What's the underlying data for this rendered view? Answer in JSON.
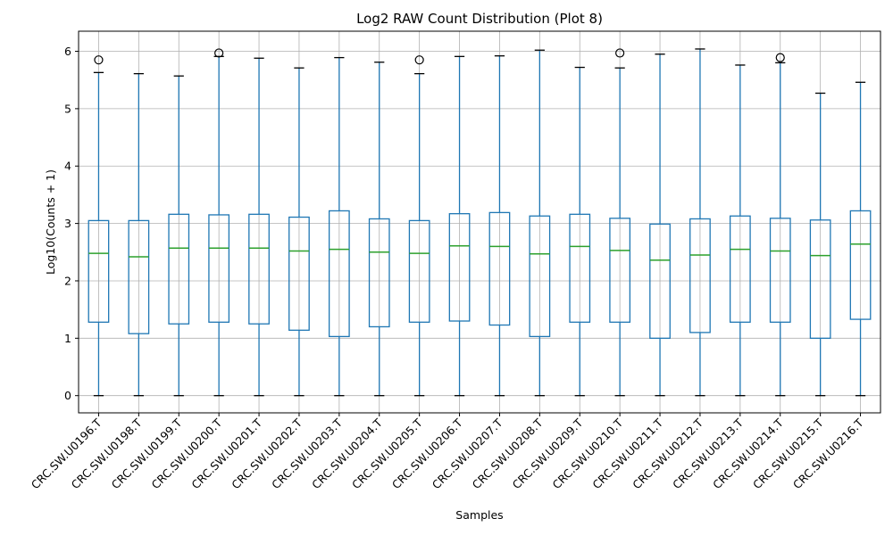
{
  "chart_data": {
    "type": "boxplot",
    "title": "Log2 RAW Count Distribution (Plot 8)",
    "xlabel": "Samples",
    "ylabel": "Log10(Counts + 1)",
    "ylim": [
      -0.3,
      6.35
    ],
    "yticks": [
      0,
      1,
      2,
      3,
      4,
      5,
      6
    ],
    "grid": true,
    "colors": {
      "box": "#1f77b4",
      "median": "#2ca02c",
      "grid": "#b0b0b0",
      "axis": "#000000"
    },
    "categories": [
      "CRC.SW.U0196.T",
      "CRC.SW.U0198.T",
      "CRC.SW.U0199.T",
      "CRC.SW.U0200.T",
      "CRC.SW.U0201.T",
      "CRC.SW.U0202.T",
      "CRC.SW.U0203.T",
      "CRC.SW.U0204.T",
      "CRC.SW.U0205.T",
      "CRC.SW.U0206.T",
      "CRC.SW.U0207.T",
      "CRC.SW.U0208.T",
      "CRC.SW.U0209.T",
      "CRC.SW.U0210.T",
      "CRC.SW.U0211.T",
      "CRC.SW.U0212.T",
      "CRC.SW.U0213.T",
      "CRC.SW.U0214.T",
      "CRC.SW.U0215.T",
      "CRC.SW.U0216.T"
    ],
    "boxes": [
      {
        "whislo": 0,
        "q1": 1.28,
        "med": 2.48,
        "q3": 3.05,
        "whishi": 5.63,
        "fliers": [
          5.85
        ]
      },
      {
        "whislo": 0,
        "q1": 1.08,
        "med": 2.42,
        "q3": 3.05,
        "whishi": 5.61,
        "fliers": []
      },
      {
        "whislo": 0,
        "q1": 1.25,
        "med": 2.57,
        "q3": 3.16,
        "whishi": 5.57,
        "fliers": []
      },
      {
        "whislo": 0,
        "q1": 1.28,
        "med": 2.57,
        "q3": 3.15,
        "whishi": 5.91,
        "fliers": [
          5.97
        ]
      },
      {
        "whislo": 0,
        "q1": 1.25,
        "med": 2.57,
        "q3": 3.16,
        "whishi": 5.88,
        "fliers": []
      },
      {
        "whislo": 0,
        "q1": 1.14,
        "med": 2.52,
        "q3": 3.11,
        "whishi": 5.71,
        "fliers": []
      },
      {
        "whislo": 0,
        "q1": 1.03,
        "med": 2.55,
        "q3": 3.22,
        "whishi": 5.89,
        "fliers": []
      },
      {
        "whislo": 0,
        "q1": 1.2,
        "med": 2.5,
        "q3": 3.08,
        "whishi": 5.81,
        "fliers": []
      },
      {
        "whislo": 0,
        "q1": 1.28,
        "med": 2.48,
        "q3": 3.05,
        "whishi": 5.61,
        "fliers": [
          5.85
        ]
      },
      {
        "whislo": 0,
        "q1": 1.3,
        "med": 2.61,
        "q3": 3.17,
        "whishi": 5.91,
        "fliers": []
      },
      {
        "whislo": 0,
        "q1": 1.23,
        "med": 2.6,
        "q3": 3.19,
        "whishi": 5.92,
        "fliers": []
      },
      {
        "whislo": 0,
        "q1": 1.03,
        "med": 2.47,
        "q3": 3.13,
        "whishi": 6.02,
        "fliers": []
      },
      {
        "whislo": 0,
        "q1": 1.28,
        "med": 2.6,
        "q3": 3.16,
        "whishi": 5.72,
        "fliers": []
      },
      {
        "whislo": 0,
        "q1": 1.28,
        "med": 2.53,
        "q3": 3.09,
        "whishi": 5.71,
        "fliers": [
          5.97
        ]
      },
      {
        "whislo": 0,
        "q1": 1.0,
        "med": 2.36,
        "q3": 2.99,
        "whishi": 5.95,
        "fliers": []
      },
      {
        "whislo": 0,
        "q1": 1.1,
        "med": 2.45,
        "q3": 3.08,
        "whishi": 6.04,
        "fliers": []
      },
      {
        "whislo": 0,
        "q1": 1.28,
        "med": 2.55,
        "q3": 3.13,
        "whishi": 5.76,
        "fliers": []
      },
      {
        "whislo": 0,
        "q1": 1.28,
        "med": 2.52,
        "q3": 3.09,
        "whishi": 5.8,
        "fliers": [
          5.89
        ]
      },
      {
        "whislo": 0,
        "q1": 1.0,
        "med": 2.44,
        "q3": 3.06,
        "whishi": 5.27,
        "fliers": []
      },
      {
        "whislo": 0,
        "q1": 1.33,
        "med": 2.64,
        "q3": 3.22,
        "whishi": 5.46,
        "fliers": []
      }
    ]
  }
}
